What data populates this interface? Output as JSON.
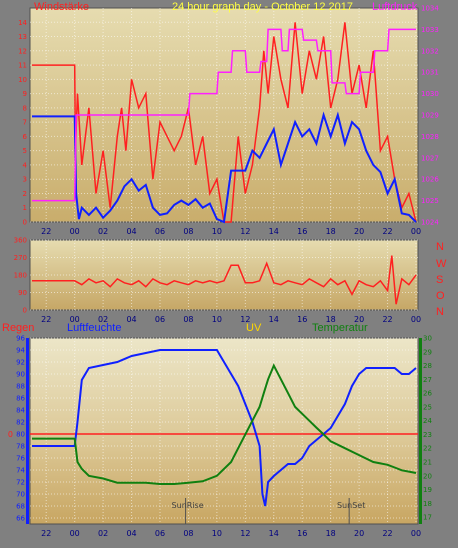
{
  "top": {
    "title": "24 hour graph day - October 12 2017",
    "left_label": "Windstärke",
    "right_label": "Luftdruck",
    "colors": {
      "wind_gust": "#ff2020",
      "wind_avg": "#1020ff",
      "pressure": "#ff20ff",
      "label_red": "#ff2020",
      "label_magenta": "#ff20ff",
      "title": "#ffff40"
    }
  },
  "mid": {
    "dir_labels": [
      "N",
      "W",
      "S",
      "O",
      "N"
    ]
  },
  "bottom": {
    "labels": {
      "rain": "Regen",
      "humidity": "Luftfeuchte",
      "uv": "UV",
      "temp": "Temperatur"
    },
    "sunrise": "SunRise",
    "sunset": "SunSet",
    "colors": {
      "rain": "#ff2020",
      "humidity": "#1020ff",
      "uv": "#ffd700",
      "temp": "#108010"
    }
  },
  "chart_data": [
    {
      "type": "line",
      "title": "24 hour graph day - October 12 2017",
      "x_tick_labels": [
        "22",
        "00",
        "02",
        "04",
        "06",
        "08",
        "10",
        "12",
        "14",
        "16",
        "18",
        "20",
        "22",
        "00"
      ],
      "xlim": [
        -3,
        24
      ],
      "left_axis": {
        "label": "Windstärke",
        "ylim": [
          0,
          15
        ],
        "ticks": [
          0,
          1,
          2,
          3,
          4,
          5,
          6,
          7,
          8,
          9,
          10,
          11,
          12,
          13,
          14
        ]
      },
      "right_axis": {
        "label": "Luftdruck",
        "ylim": [
          1024,
          1034
        ],
        "ticks": [
          1024,
          1025,
          1026,
          1027,
          1028,
          1029,
          1030,
          1031,
          1032,
          1033,
          1034
        ]
      },
      "series": [
        {
          "axis": "left",
          "x": [
            -3,
            0,
            0.05,
            0.2,
            0.5,
            1,
            1.5,
            2,
            2.5,
            3,
            3.3,
            3.6,
            4,
            4.5,
            5,
            5.5,
            6,
            6.5,
            7,
            7.5,
            8,
            8.5,
            9,
            9.5,
            10,
            10.5,
            11,
            11.5,
            12,
            12.5,
            13,
            13.3,
            13.6,
            14,
            14.5,
            15,
            15.5,
            16,
            16.5,
            17,
            17.5,
            18,
            18.5,
            19,
            19.5,
            20,
            20.5,
            21,
            21.5,
            22,
            22.5,
            23,
            23.5,
            24
          ],
          "y": [
            11,
            11,
            5,
            9,
            4,
            8,
            2,
            5,
            1,
            6,
            8,
            5,
            10,
            8,
            9,
            3,
            7,
            6,
            5,
            6,
            8,
            4,
            6,
            2,
            3,
            0,
            0,
            6,
            2,
            4,
            8,
            12,
            9,
            13,
            10,
            8,
            14,
            9,
            12,
            10,
            13,
            8,
            10,
            14,
            9,
            11,
            8,
            12,
            5,
            6,
            3,
            1,
            2,
            0
          ]
        },
        {
          "axis": "left",
          "x": [
            -3,
            0,
            0.1,
            0.3,
            0.5,
            1,
            1.5,
            2,
            2.5,
            3,
            3.5,
            4,
            4.5,
            5,
            5.5,
            6,
            6.5,
            7,
            7.5,
            8,
            8.5,
            9,
            9.5,
            10,
            10.5,
            11,
            11.5,
            12,
            12.5,
            13,
            13.5,
            14,
            14.5,
            15,
            15.5,
            16,
            16.5,
            17,
            17.5,
            18,
            18.5,
            19,
            19.5,
            20,
            20.5,
            21,
            21.5,
            22,
            22.5,
            23,
            23.5,
            24
          ],
          "y": [
            7.4,
            7.4,
            2,
            0.2,
            1,
            0.5,
            1,
            0.3,
            0.8,
            1.5,
            2.5,
            3,
            2.2,
            2.6,
            1,
            0.5,
            0.6,
            1.2,
            1.5,
            1.2,
            1.6,
            1,
            1.3,
            0.2,
            0,
            3.6,
            3.6,
            3.6,
            5,
            4.5,
            5.5,
            6.5,
            4,
            5.5,
            7,
            6,
            6.5,
            5.5,
            7.5,
            6,
            7.5,
            5.5,
            7,
            6.5,
            5,
            4,
            3.5,
            2,
            3,
            0.6,
            0.5,
            0
          ]
        },
        {
          "axis": "right",
          "x": [
            -3,
            0,
            0.1,
            8,
            8.1,
            10,
            10.1,
            11,
            11.1,
            12,
            12.1,
            13,
            13.1,
            13.5,
            13.6,
            14.5,
            14.6,
            15,
            15.1,
            16,
            16.1,
            17,
            17.1,
            18,
            18.1,
            19,
            19.1,
            20,
            20.1,
            21,
            21.1,
            22,
            22.1,
            24
          ],
          "y": [
            1025,
            1025,
            1029,
            1029,
            1030,
            1030,
            1031,
            1031,
            1032,
            1032,
            1031,
            1031,
            1031.5,
            1031.5,
            1033,
            1033,
            1032,
            1032,
            1033,
            1033,
            1032.5,
            1032.5,
            1032,
            1032,
            1030.5,
            1030.5,
            1030,
            1030,
            1031,
            1031,
            1032,
            1032,
            1033,
            1033
          ]
        }
      ]
    },
    {
      "type": "line",
      "title": "",
      "x_tick_labels": [
        "22",
        "00",
        "02",
        "04",
        "06",
        "08",
        "10",
        "12",
        "14",
        "16",
        "18",
        "20",
        "22",
        "00"
      ],
      "xlim": [
        -3,
        24
      ],
      "left_axis": {
        "ylim": [
          0,
          360
        ],
        "ticks": [
          0,
          90,
          180,
          270,
          360
        ]
      },
      "right_axis": {
        "labels": [
          "N",
          "W",
          "S",
          "O",
          "N"
        ]
      },
      "series": [
        {
          "x": [
            -3,
            0,
            0.5,
            1,
            1.5,
            2,
            2.5,
            3,
            3.5,
            4,
            4.5,
            5,
            5.5,
            6,
            6.5,
            7,
            7.5,
            8,
            8.5,
            9,
            9.5,
            10,
            10.5,
            11,
            11.5,
            12,
            12.5,
            13,
            13.5,
            14,
            14.5,
            15,
            15.5,
            16,
            16.5,
            17,
            17.5,
            18,
            18.5,
            19,
            19.5,
            20,
            20.5,
            21,
            21.5,
            22,
            22.3,
            22.6,
            23,
            23.5,
            24
          ],
          "y": [
            150,
            150,
            130,
            160,
            140,
            150,
            120,
            160,
            140,
            130,
            150,
            120,
            160,
            140,
            130,
            150,
            140,
            130,
            150,
            140,
            150,
            140,
            150,
            230,
            230,
            140,
            140,
            150,
            240,
            140,
            130,
            150,
            140,
            130,
            160,
            140,
            120,
            160,
            130,
            150,
            80,
            150,
            130,
            120,
            150,
            100,
            280,
            30,
            160,
            130,
            180
          ]
        }
      ]
    },
    {
      "type": "line",
      "title": "",
      "x_tick_labels": [
        "22",
        "00",
        "02",
        "04",
        "06",
        "08",
        "10",
        "12",
        "14",
        "16",
        "18",
        "20",
        "22",
        "00"
      ],
      "xlim": [
        -3,
        24
      ],
      "left_axis": {
        "label": "Luftfeuchte",
        "ylim": [
          65,
          96
        ],
        "ticks": [
          66,
          68,
          70,
          72,
          74,
          76,
          78,
          80,
          82,
          84,
          86,
          88,
          90,
          92,
          94,
          96
        ]
      },
      "right_axis": {
        "label": "Temperatur",
        "ylim": [
          16.5,
          30
        ],
        "ticks": [
          17,
          18,
          19,
          20,
          21,
          22,
          23,
          24,
          25,
          26,
          27,
          28,
          29,
          30
        ]
      },
      "rain_marker": "0",
      "annotations": [
        "SunRise",
        "SunSet"
      ],
      "series": [
        {
          "name": "Luftfeuchte",
          "axis": "left",
          "x": [
            -3,
            0,
            0.2,
            0.5,
            1,
            2,
            3,
            4,
            5,
            6,
            8,
            10,
            10.5,
            11,
            11.5,
            12,
            12.5,
            13,
            13.2,
            13.4,
            13.6,
            14,
            14.5,
            15,
            15.5,
            16,
            16.5,
            17,
            17.5,
            18,
            18.5,
            19,
            19.5,
            20,
            20.5,
            21,
            21.5,
            22,
            22.5,
            23,
            23.5,
            24
          ],
          "y": [
            78,
            78,
            82,
            89,
            91,
            91.5,
            92,
            93,
            93.5,
            94,
            94,
            94,
            92,
            90,
            88,
            85,
            82,
            78,
            70,
            68,
            72,
            73,
            74,
            75,
            75,
            76,
            78,
            79,
            80,
            81,
            83,
            85,
            88,
            90,
            91,
            91,
            91,
            91,
            91,
            90,
            90,
            91
          ]
        },
        {
          "name": "Temperatur",
          "axis": "right",
          "x": [
            -3,
            0,
            0.2,
            0.5,
            1,
            2,
            3,
            4,
            5,
            6,
            7,
            8,
            9,
            10,
            11,
            11.5,
            12,
            12.5,
            13,
            13.3,
            13.6,
            14,
            14.5,
            15,
            15.5,
            16,
            16.5,
            17,
            17.5,
            18,
            19,
            20,
            21,
            22,
            22.5,
            23,
            23.5,
            24
          ],
          "y": [
            22.7,
            22.7,
            21,
            20.5,
            20,
            19.8,
            19.5,
            19.5,
            19.5,
            19.4,
            19.4,
            19.5,
            19.6,
            20,
            21,
            22,
            23,
            24,
            25,
            26,
            27,
            28,
            27,
            26,
            25,
            24.5,
            24,
            23.5,
            23,
            22.5,
            22,
            21.5,
            21,
            20.8,
            20.6,
            20.4,
            20.3,
            20.2
          ]
        }
      ]
    }
  ]
}
